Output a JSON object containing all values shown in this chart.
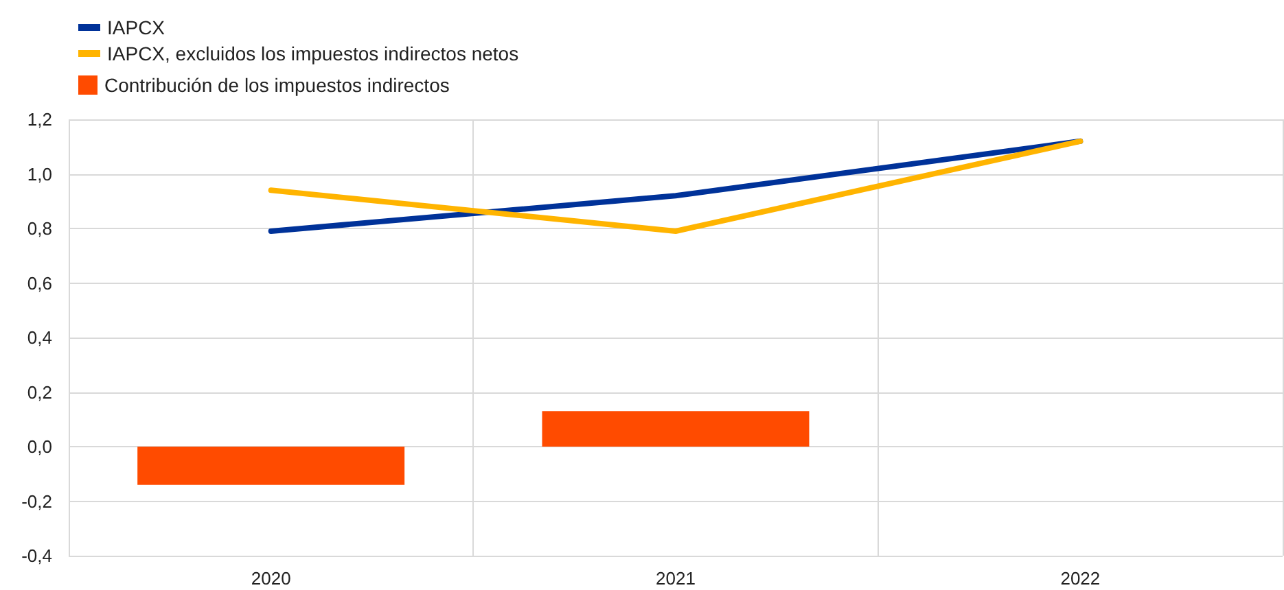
{
  "chart_data": {
    "type": "line",
    "categories": [
      "2020",
      "2021",
      "2022"
    ],
    "series": [
      {
        "name": "IAPCX",
        "color": "#003299",
        "values": [
          0.79,
          0.92,
          1.12
        ]
      },
      {
        "name": "IAPCX, excluidos los impuestos indirectos netos",
        "color": "#ffb400",
        "values": [
          0.94,
          0.79,
          1.12
        ]
      },
      {
        "name": "Contribución de los impuestos indirectos",
        "type": "bar",
        "color": "#ff4b00",
        "values": [
          -0.14,
          0.13,
          null
        ]
      }
    ],
    "ylim": [
      -0.4,
      1.2
    ],
    "yticks": [
      {
        "value": -0.4,
        "label": "-0,4"
      },
      {
        "value": -0.2,
        "label": "-0,2"
      },
      {
        "value": 0,
        "label": "0,0"
      },
      {
        "value": 0.2,
        "label": "0,2"
      },
      {
        "value": 0.4,
        "label": "0,4"
      },
      {
        "value": 0.6,
        "label": "0,6"
      },
      {
        "value": 0.8,
        "label": "0,8"
      },
      {
        "value": 1.0,
        "label": "1,0"
      },
      {
        "value": 1.2,
        "label": "1,2"
      }
    ],
    "grid": true,
    "legend": "top left",
    "marker": "none",
    "line_style": "solid"
  }
}
